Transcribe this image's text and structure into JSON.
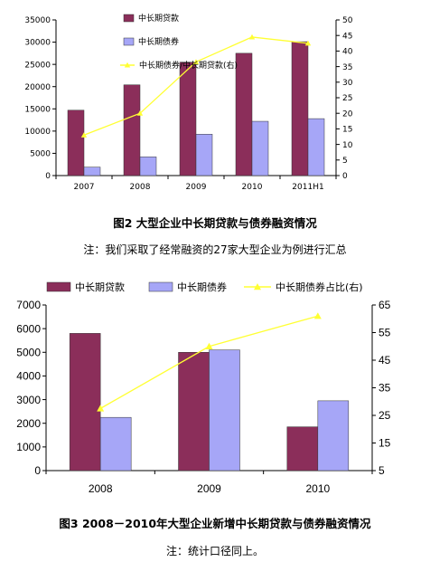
{
  "colors": {
    "loan": "#8B2E5A",
    "bond": "#A6A6F7",
    "ratio": "#FFFF33",
    "axis": "#000000"
  },
  "figure1": {
    "caption": "图2  大型企业中长期贷款与债券融资情况",
    "note": "注：我们采取了经常融资的27家大型企业为例进行汇总",
    "chart_data": {
      "type": "bar",
      "categories": [
        "2007",
        "2008",
        "2009",
        "2010",
        "2011H1"
      ],
      "series": [
        {
          "name": "中长期贷款",
          "kind": "bar",
          "axis": "left",
          "values": [
            14700,
            20400,
            25500,
            27500,
            30100
          ]
        },
        {
          "name": "中长期债券",
          "kind": "bar",
          "axis": "left",
          "values": [
            1900,
            4200,
            9300,
            12200,
            12800
          ]
        },
        {
          "name": "中长期债券/中长期贷款(右)",
          "kind": "line",
          "axis": "right",
          "values": [
            13,
            20,
            36.5,
            44.5,
            42.5
          ]
        }
      ],
      "ylim_left": [
        0,
        35000
      ],
      "yticks_left": [
        0,
        5000,
        10000,
        15000,
        20000,
        25000,
        30000,
        35000
      ],
      "ylim_right": [
        0,
        50
      ],
      "yticks_right": [
        0,
        5,
        10,
        15,
        20,
        25,
        30,
        35,
        40,
        45,
        50
      ],
      "grid": false,
      "legend_position": "top-center"
    }
  },
  "figure2": {
    "caption": "图3  2008－2010年大型企业新增中长期贷款与债券融资情况",
    "note": "注：统计口径同上。",
    "chart_data": {
      "type": "bar",
      "categories": [
        "2008",
        "2009",
        "2010"
      ],
      "series": [
        {
          "name": "中长期贷款",
          "kind": "bar",
          "axis": "left",
          "values": [
            5800,
            5000,
            1850
          ]
        },
        {
          "name": "中长期债券",
          "kind": "bar",
          "axis": "left",
          "values": [
            2250,
            5100,
            2950
          ]
        },
        {
          "name": "中长期债券占比(右)",
          "kind": "line",
          "axis": "right",
          "values": [
            27.5,
            50,
            61
          ]
        }
      ],
      "ylim_left": [
        0,
        7000
      ],
      "yticks_left": [
        0,
        1000,
        2000,
        3000,
        4000,
        5000,
        6000,
        7000
      ],
      "ylim_right": [
        5,
        65
      ],
      "yticks_right": [
        5,
        15,
        25,
        35,
        45,
        55,
        65
      ],
      "grid": false,
      "legend_position": "top"
    }
  }
}
